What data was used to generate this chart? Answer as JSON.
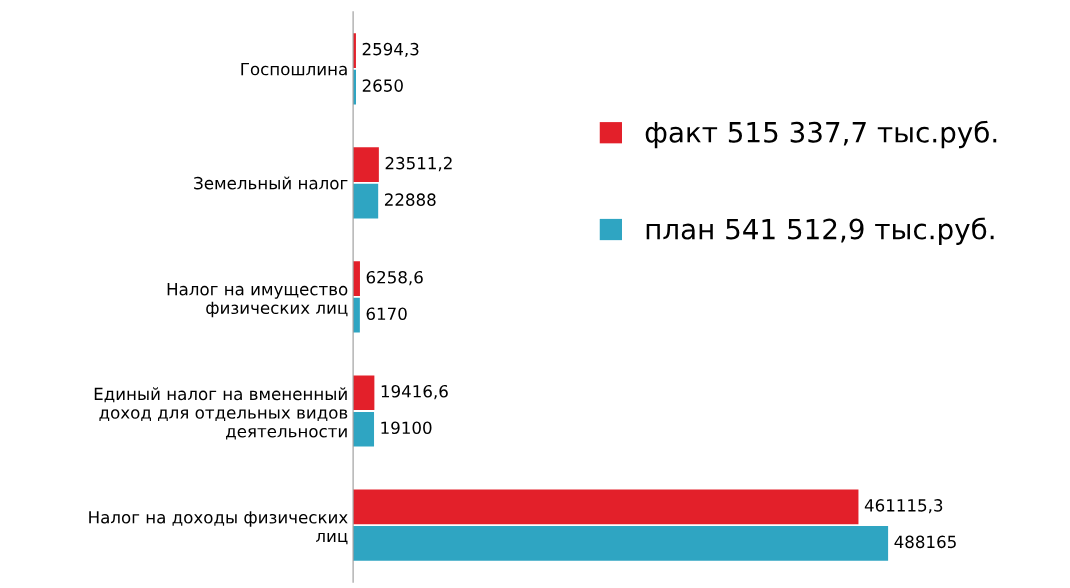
{
  "chart_data": {
    "type": "bar",
    "orientation": "horizontal",
    "categories": [
      "Госпошлина",
      "Земельный налог",
      "Налог на имущество физических лиц",
      "Единый налог на вмененный доход для отдельных видов деятельности",
      "Налог на доходы физических лиц"
    ],
    "series": [
      {
        "name": "факт 515 337,7 тыс.руб.",
        "color": "#e3202a",
        "values": [
          2594.3,
          23511.2,
          6258.6,
          19416.6,
          461115.3
        ],
        "value_labels": [
          "2594,3",
          "23511,2",
          "6258,6",
          "19416,6",
          "461115,3"
        ]
      },
      {
        "name": "план 541 512,9 тыс.руб.",
        "color": "#2fa5c2",
        "values": [
          2650,
          22888,
          6170,
          19100,
          488165
        ],
        "value_labels": [
          "2650",
          "22888",
          "6170",
          "19100",
          "488165"
        ]
      }
    ],
    "legend": "right",
    "tick_labels": "y",
    "grid": false
  }
}
